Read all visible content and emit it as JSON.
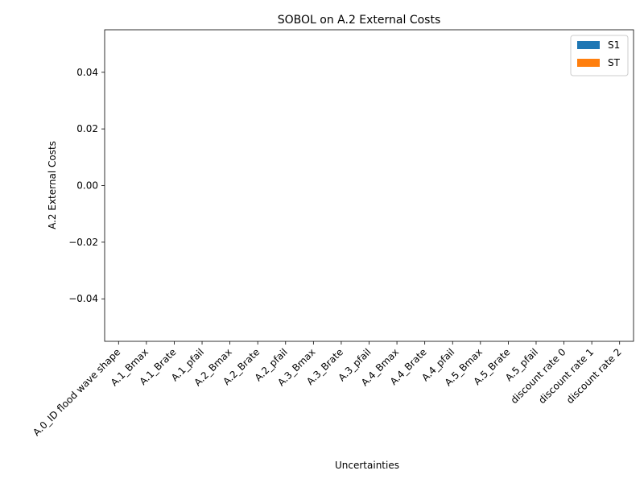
{
  "chart_data": {
    "type": "bar",
    "title": "SOBOL on A.2 External Costs",
    "xlabel": "Uncertainties",
    "ylabel": "A.2 External Costs",
    "categories": [
      "A.0_ID flood wave shape",
      "A.1_Bmax",
      "A.1_Brate",
      "A.1_pfail",
      "A.2_Bmax",
      "A.2_Brate",
      "A.2_pfail",
      "A.3_Bmax",
      "A.3_Brate",
      "A.3_pfail",
      "A.4_Bmax",
      "A.4_Brate",
      "A.4_pfail",
      "A.5_Bmax",
      "A.5_Brate",
      "A.5_pfail",
      "discount rate 0",
      "discount rate 1",
      "discount rate 2"
    ],
    "series": [
      {
        "name": "S1",
        "color": "#1f77b4",
        "values": [
          0,
          0,
          0,
          0,
          0,
          0,
          0,
          0,
          0,
          0,
          0,
          0,
          0,
          0,
          0,
          0,
          0,
          0,
          0
        ]
      },
      {
        "name": "ST",
        "color": "#ff7f0e",
        "values": [
          0,
          0,
          0,
          0,
          0,
          0,
          0,
          0,
          0,
          0,
          0,
          0,
          0,
          0,
          0,
          0,
          0,
          0,
          0
        ]
      }
    ],
    "ylim": [
      -0.055,
      0.055
    ],
    "yticks": [
      "0.04",
      "0.02",
      "0.00",
      "−0.02",
      "−0.04"
    ],
    "ytick_values": [
      0.04,
      0.02,
      0.0,
      -0.02,
      -0.04
    ],
    "grid": false,
    "legend_position": "top-right"
  }
}
